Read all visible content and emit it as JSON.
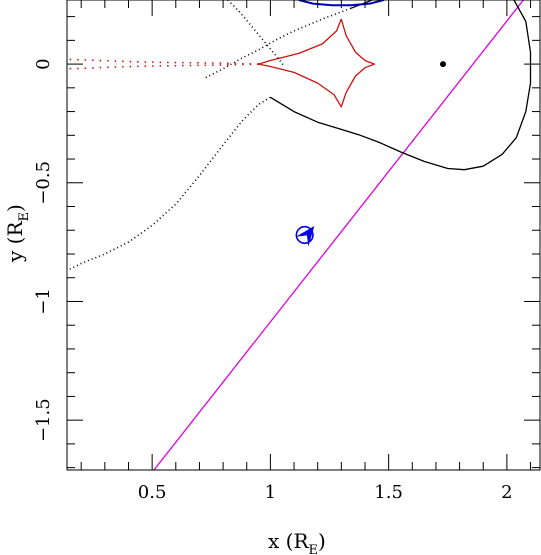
{
  "chart_data": {
    "type": "line",
    "title": "",
    "xlabel": {
      "main": "x (R",
      "sub": "E",
      "close": ")"
    },
    "ylabel": {
      "main": "y (R",
      "sub": "E",
      "close": ")"
    },
    "xlim": [
      0.14,
      2.14
    ],
    "ylim": [
      -1.71,
      0.27
    ],
    "x_major_ticks": [
      0.5,
      1,
      1.5,
      2
    ],
    "x_tick_labels": [
      "0.5",
      "1",
      "1.5",
      "2"
    ],
    "x_minor_step": 0.1,
    "y_major_ticks": [
      0,
      -0.5,
      -1,
      -1.5
    ],
    "y_tick_labels": [
      "0",
      "−0.5",
      "−1",
      "−1.5"
    ],
    "y_minor_step": 0.1,
    "colors": {
      "trajectory": "#e000e0",
      "caustic": "#d01010",
      "critical_curve": "#000000",
      "planet_curve": "#0000c0",
      "source": "#0000e0",
      "lens": "#000000"
    },
    "series": [
      {
        "kind": "trajectory",
        "style": "solid",
        "x": [
          0.5,
          2.07
        ],
        "y": [
          -1.72,
          0.27
        ]
      },
      {
        "kind": "caustic",
        "style": "solid",
        "x": [
          1.3,
          1.28,
          1.22,
          1.12,
          1.0,
          0.95,
          1.0,
          1.1,
          1.2,
          1.27,
          1.3,
          1.32,
          1.36,
          1.4,
          1.44,
          1.4,
          1.36,
          1.32,
          1.3
        ],
        "y": [
          0.19,
          0.14,
          0.085,
          0.045,
          0.015,
          0.0,
          -0.01,
          -0.035,
          -0.08,
          -0.13,
          -0.18,
          -0.12,
          -0.05,
          -0.015,
          0.0,
          0.015,
          0.05,
          0.12,
          0.19
        ]
      },
      {
        "kind": "caustic",
        "style": "dotted",
        "x": [
          0.95,
          0.8,
          0.65,
          0.5,
          0.35,
          0.2,
          0.14
        ],
        "y": [
          0.0,
          0.004,
          0.006,
          0.008,
          0.012,
          0.018,
          0.02
        ]
      },
      {
        "kind": "caustic",
        "style": "dotted",
        "x": [
          0.95,
          0.8,
          0.65,
          0.5,
          0.35,
          0.2,
          0.14
        ],
        "y": [
          0.0,
          -0.004,
          -0.006,
          -0.008,
          -0.012,
          -0.018,
          -0.02
        ]
      },
      {
        "kind": "critical_curve",
        "style": "solid",
        "x": [
          1.0,
          1.1,
          1.2,
          1.3,
          1.38,
          1.46,
          1.55,
          1.65,
          1.75,
          1.82,
          1.9,
          1.98,
          2.04,
          2.08,
          2.1,
          2.1,
          2.08,
          2.03
        ],
        "y": [
          -0.14,
          -0.2,
          -0.245,
          -0.275,
          -0.3,
          -0.33,
          -0.37,
          -0.41,
          -0.44,
          -0.445,
          -0.43,
          -0.38,
          -0.31,
          -0.2,
          -0.08,
          0.05,
          0.18,
          0.27
        ]
      },
      {
        "kind": "critical_curve",
        "style": "solid",
        "x": [
          1.43,
          1.38,
          1.34
        ],
        "y": [
          0.27,
          0.25,
          0.235
        ]
      },
      {
        "kind": "critical_curve",
        "style": "dotted",
        "x": [
          1.34,
          1.22,
          1.1,
          1.02,
          0.95,
          0.87,
          0.8,
          0.72
        ],
        "y": [
          0.235,
          0.19,
          0.14,
          0.1,
          0.06,
          0.02,
          -0.02,
          -0.06
        ]
      },
      {
        "kind": "critical_curve",
        "style": "dotted",
        "x": [
          1.0,
          0.95,
          0.88,
          0.8,
          0.7,
          0.6,
          0.5,
          0.4,
          0.3,
          0.2,
          0.14
        ],
        "y": [
          -0.14,
          -0.17,
          -0.24,
          -0.34,
          -0.47,
          -0.59,
          -0.68,
          -0.75,
          -0.8,
          -0.84,
          -0.87
        ]
      },
      {
        "kind": "critical_curve",
        "style": "dotted",
        "x": [
          0.82,
          0.87,
          0.92,
          0.97,
          1.02,
          1.06
        ],
        "y": [
          0.27,
          0.22,
          0.16,
          0.1,
          0.04,
          -0.01
        ]
      },
      {
        "kind": "planet_curve",
        "style": "solid",
        "x": [
          1.12,
          1.18,
          1.26,
          1.34,
          1.42,
          1.48
        ],
        "y": [
          0.27,
          0.255,
          0.248,
          0.248,
          0.255,
          0.27
        ]
      }
    ],
    "lens_point": {
      "x": 1.73,
      "y": 0.0
    },
    "source": {
      "x": 1.145,
      "y": -0.72,
      "radius": 0.035
    },
    "arrow": {
      "x": 1.16,
      "y": -0.715,
      "dx": 0.53,
      "dy": 0.67
    }
  }
}
